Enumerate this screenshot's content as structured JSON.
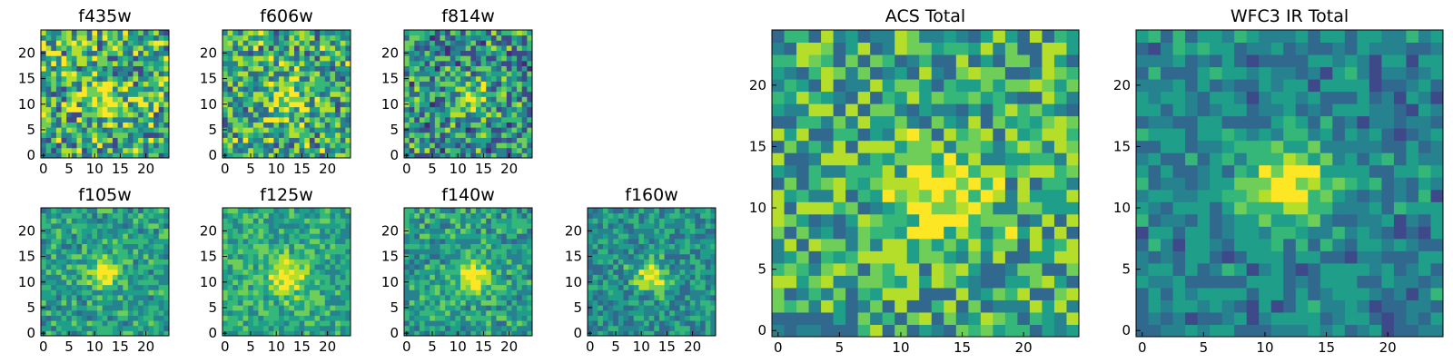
{
  "figure": {
    "grid_size": 25
  },
  "colors": {
    "viridis": [
      "#440154",
      "#482878",
      "#3e4989",
      "#31688e",
      "#26828e",
      "#1f9e89",
      "#35b779",
      "#6ece58",
      "#b5de2b",
      "#fde725"
    ],
    "axis": "#000000",
    "background": "#ffffff"
  },
  "chart_data": [
    {
      "type": "heatmap",
      "title": "f435w",
      "xticks": [
        0,
        5,
        10,
        15,
        20
      ],
      "yticks": [
        0,
        5,
        10,
        15,
        20
      ],
      "xlim": [
        0,
        24
      ],
      "ylim": [
        0,
        24
      ],
      "colormap": "viridis",
      "source": {
        "center": [
          12,
          11
        ],
        "sigma": 2.5,
        "peak": 0.35,
        "base": 0.6,
        "noise": 0.35,
        "seed": 11
      }
    },
    {
      "type": "heatmap",
      "title": "f606w",
      "xticks": [
        0,
        5,
        10,
        15,
        20
      ],
      "yticks": [
        0,
        5,
        10,
        15,
        20
      ],
      "xlim": [
        0,
        24
      ],
      "ylim": [
        0,
        24
      ],
      "colormap": "viridis",
      "source": {
        "center": [
          12,
          11
        ],
        "sigma": 2.5,
        "peak": 0.35,
        "base": 0.6,
        "noise": 0.33,
        "seed": 23
      }
    },
    {
      "type": "heatmap",
      "title": "f814w",
      "xticks": [
        0,
        5,
        10,
        15,
        20
      ],
      "yticks": [
        0,
        5,
        10,
        15,
        20
      ],
      "xlim": [
        0,
        24
      ],
      "ylim": [
        0,
        24
      ],
      "colormap": "viridis",
      "source": {
        "center": [
          13,
          11
        ],
        "sigma": 2.2,
        "peak": 0.4,
        "base": 0.5,
        "noise": 0.32,
        "seed": 37
      }
    },
    {
      "type": "heatmap",
      "title": "f105w",
      "xticks": [
        0,
        5,
        10,
        15,
        20
      ],
      "yticks": [
        0,
        5,
        10,
        15,
        20
      ],
      "xlim": [
        0,
        24
      ],
      "ylim": [
        0,
        24
      ],
      "colormap": "viridis",
      "source": {
        "center": [
          12,
          12
        ],
        "sigma": 2.2,
        "peak": 0.45,
        "base": 0.55,
        "noise": 0.18,
        "seed": 41
      }
    },
    {
      "type": "heatmap",
      "title": "f125w",
      "xticks": [
        0,
        5,
        10,
        15,
        20
      ],
      "yticks": [
        0,
        5,
        10,
        15,
        20
      ],
      "xlim": [
        0,
        24
      ],
      "ylim": [
        0,
        24
      ],
      "colormap": "viridis",
      "source": {
        "center": [
          12,
          11
        ],
        "sigma": 2.5,
        "peak": 0.4,
        "base": 0.6,
        "noise": 0.17,
        "seed": 53
      }
    },
    {
      "type": "heatmap",
      "title": "f140w",
      "xticks": [
        0,
        5,
        10,
        15,
        20
      ],
      "yticks": [
        0,
        5,
        10,
        15,
        20
      ],
      "xlim": [
        0,
        24
      ],
      "ylim": [
        0,
        24
      ],
      "colormap": "viridis",
      "source": {
        "center": [
          13,
          11
        ],
        "sigma": 2.4,
        "peak": 0.45,
        "base": 0.55,
        "noise": 0.18,
        "seed": 67
      }
    },
    {
      "type": "heatmap",
      "title": "f160w",
      "xticks": [
        0,
        5,
        10,
        15,
        20
      ],
      "yticks": [
        0,
        5,
        10,
        15,
        20
      ],
      "xlim": [
        0,
        24
      ],
      "ylim": [
        0,
        24
      ],
      "colormap": "viridis",
      "source": {
        "center": [
          12,
          11
        ],
        "sigma": 2.0,
        "peak": 0.5,
        "base": 0.5,
        "noise": 0.2,
        "seed": 79
      }
    },
    {
      "type": "heatmap",
      "title": "ACS Total",
      "xticks": [
        0,
        5,
        10,
        15,
        20
      ],
      "yticks": [
        0,
        5,
        10,
        15,
        20
      ],
      "xlim": [
        0,
        24
      ],
      "ylim": [
        0,
        24
      ],
      "colormap": "viridis",
      "source": {
        "center": [
          13,
          11
        ],
        "sigma": 2.2,
        "peak": 0.45,
        "base": 0.6,
        "noise": 0.3,
        "seed": 97
      }
    },
    {
      "type": "heatmap",
      "title": "WFC3 IR Total",
      "xticks": [
        0,
        5,
        10,
        15,
        20
      ],
      "yticks": [
        0,
        5,
        10,
        15,
        20
      ],
      "xlim": [
        0,
        24
      ],
      "ylim": [
        0,
        24
      ],
      "colormap": "viridis",
      "source": {
        "center": [
          12,
          12
        ],
        "sigma": 2.4,
        "peak": 0.55,
        "base": 0.45,
        "noise": 0.17,
        "seed": 131
      }
    }
  ]
}
